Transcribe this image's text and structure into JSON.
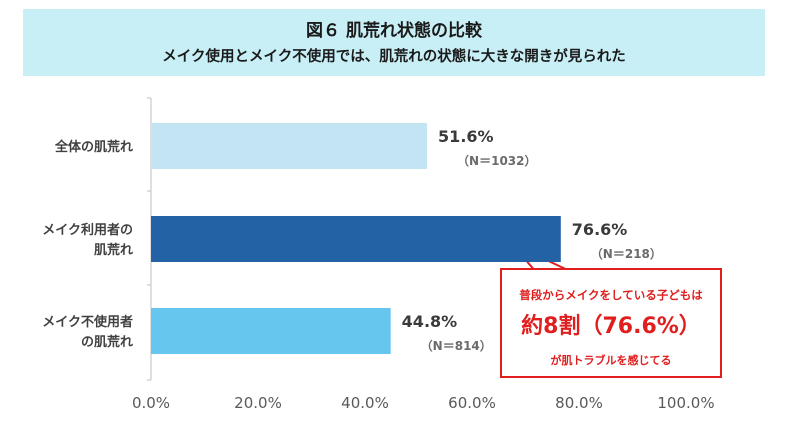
{
  "header": {
    "title": "図６ 肌荒れ状態の比較",
    "subtitle": "メイク使用とメイク不使用では、肌荒れの状態に大きな開きが見られた"
  },
  "callout": {
    "line1": "普段からメイクをしている子どもは",
    "line2": "約8割（76.6%）",
    "line3": "が肌トラブルを感じてる"
  },
  "colors": {
    "title_bg": "#c8eff6",
    "bar_light": "#c3e5f3",
    "bar_dark": "#2462a6",
    "bar_mid": "#67c6ee",
    "callout_red": "#e01e1e"
  },
  "chart_data": {
    "type": "bar",
    "orientation": "horizontal",
    "categories": [
      [
        "全体の肌荒れ"
      ],
      [
        "メイク利用者の",
        "肌荒れ"
      ],
      [
        "メイク不使用者",
        "の肌荒れ"
      ]
    ],
    "values": [
      51.6,
      76.6,
      44.8
    ],
    "value_labels": [
      "51.6%",
      "76.6%",
      "44.8%"
    ],
    "n_labels": [
      "（N＝1032）",
      "（N＝218）",
      "（N＝814）"
    ],
    "bar_colors": [
      "#c3e5f3",
      "#2462a6",
      "#67c6ee"
    ],
    "xlim": [
      0,
      100
    ],
    "xticks": [
      0,
      20,
      40,
      60,
      80,
      100
    ],
    "xtick_labels": [
      "0.0%",
      "20.0%",
      "40.0%",
      "60.0%",
      "80.0%",
      "100.0%"
    ],
    "grid": false
  }
}
